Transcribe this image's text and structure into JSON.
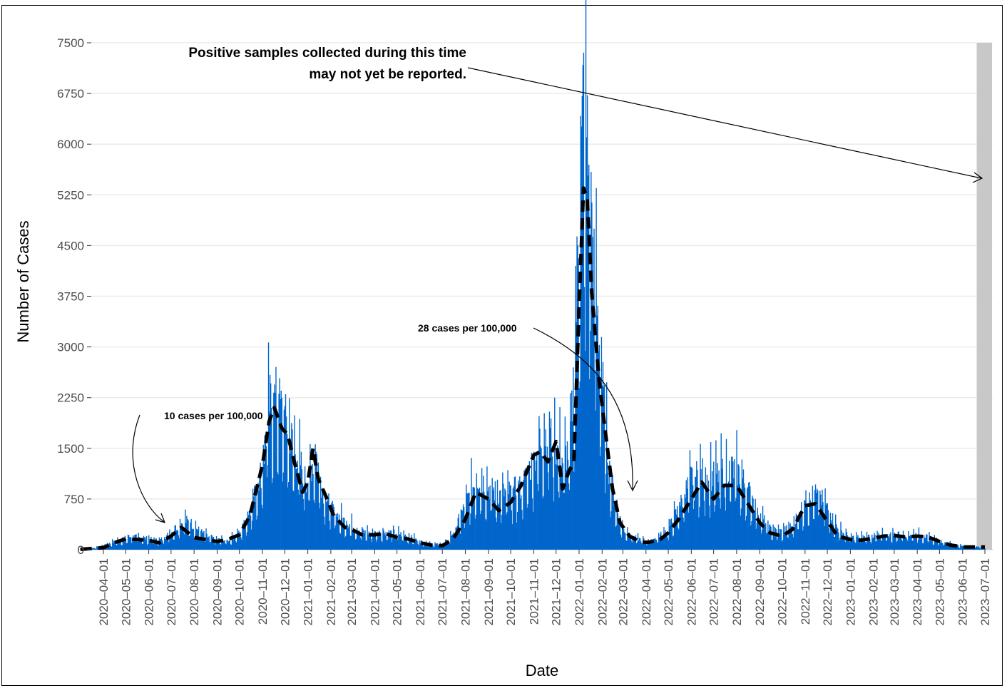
{
  "chart_data": {
    "type": "bar",
    "title": "",
    "xlabel": "Date",
    "ylabel": "Number of Cases",
    "ylim": [
      0,
      7500
    ],
    "xlim": [
      "2020-03-01",
      "2023-07-01"
    ],
    "grid": true,
    "y_ticks": [
      "0",
      "750",
      "1500",
      "2250",
      "3000",
      "3750",
      "4500",
      "5250",
      "6000",
      "6750",
      "7500"
    ],
    "x_ticks": [
      "2020-04-01",
      "2020-05-01",
      "2020-06-01",
      "2020-07-01",
      "2020-08-01",
      "2020-09-01",
      "2020-10-01",
      "2020-11-01",
      "2020-12-01",
      "2021-01-01",
      "2021-02-01",
      "2021-03-01",
      "2021-04-01",
      "2021-05-01",
      "2021-06-01",
      "2021-07-01",
      "2021-08-01",
      "2021-09-01",
      "2021-10-01",
      "2021-11-01",
      "2021-12-01",
      "2022-01-01",
      "2022-02-01",
      "2022-03-01",
      "2022-04-01",
      "2022-05-01",
      "2022-06-01",
      "2022-07-01",
      "2022-08-01",
      "2022-09-01",
      "2022-10-01",
      "2022-11-01",
      "2022-12-01",
      "2023-01-01",
      "2023-02-01",
      "2023-03-01",
      "2023-04-01",
      "2023-05-01",
      "2023-06-01",
      "2023-07-01"
    ],
    "series": [
      {
        "type": "bar",
        "color": "#0066CC",
        "points": [
          [
            "2020-03-01",
            10
          ],
          [
            "2020-03-20",
            25
          ],
          [
            "2020-04-01",
            60
          ],
          [
            "2020-04-15",
            110
          ],
          [
            "2020-05-01",
            170
          ],
          [
            "2020-05-10",
            200
          ],
          [
            "2020-05-20",
            170
          ],
          [
            "2020-06-01",
            160
          ],
          [
            "2020-06-15",
            130
          ],
          [
            "2020-07-01",
            250
          ],
          [
            "2020-07-10",
            350
          ],
          [
            "2020-07-20",
            420
          ],
          [
            "2020-07-28",
            380
          ],
          [
            "2020-08-05",
            300
          ],
          [
            "2020-08-20",
            180
          ],
          [
            "2020-09-01",
            150
          ],
          [
            "2020-09-15",
            130
          ],
          [
            "2020-10-01",
            240
          ],
          [
            "2020-10-10",
            430
          ],
          [
            "2020-10-20",
            750
          ],
          [
            "2020-11-01",
            1200
          ],
          [
            "2020-11-10",
            2100
          ],
          [
            "2020-11-20",
            2200
          ],
          [
            "2020-12-01",
            1900
          ],
          [
            "2020-12-10",
            1600
          ],
          [
            "2020-12-20",
            1300
          ],
          [
            "2020-12-31",
            1000
          ],
          [
            "2021-01-05",
            1200
          ],
          [
            "2021-01-12",
            1400
          ],
          [
            "2021-01-20",
            900
          ],
          [
            "2021-02-01",
            600
          ],
          [
            "2021-02-15",
            450
          ],
          [
            "2021-03-01",
            350
          ],
          [
            "2021-03-15",
            260
          ],
          [
            "2021-04-01",
            240
          ],
          [
            "2021-04-15",
            260
          ],
          [
            "2021-05-01",
            240
          ],
          [
            "2021-05-15",
            200
          ],
          [
            "2021-06-01",
            120
          ],
          [
            "2021-06-15",
            90
          ],
          [
            "2021-07-01",
            70
          ],
          [
            "2021-07-10",
            150
          ],
          [
            "2021-07-20",
            350
          ],
          [
            "2021-08-01",
            650
          ],
          [
            "2021-08-10",
            900
          ],
          [
            "2021-08-20",
            1050
          ],
          [
            "2021-09-01",
            900
          ],
          [
            "2021-09-15",
            800
          ],
          [
            "2021-10-01",
            850
          ],
          [
            "2021-10-15",
            900
          ],
          [
            "2021-11-01",
            1300
          ],
          [
            "2021-11-10",
            1600
          ],
          [
            "2021-11-20",
            1700
          ],
          [
            "2021-12-01",
            1500
          ],
          [
            "2021-12-10",
            1300
          ],
          [
            "2021-12-20",
            1500
          ],
          [
            "2021-12-26",
            2800
          ],
          [
            "2022-01-01",
            5000
          ],
          [
            "2022-01-07",
            6500
          ],
          [
            "2022-01-12",
            5800
          ],
          [
            "2022-01-18",
            4600
          ],
          [
            "2022-01-25",
            3500
          ],
          [
            "2022-02-01",
            2400
          ],
          [
            "2022-02-10",
            1200
          ],
          [
            "2022-02-20",
            600
          ],
          [
            "2022-03-01",
            300
          ],
          [
            "2022-03-15",
            180
          ],
          [
            "2022-04-01",
            130
          ],
          [
            "2022-04-15",
            170
          ],
          [
            "2022-05-01",
            300
          ],
          [
            "2022-05-15",
            600
          ],
          [
            "2022-06-01",
            1050
          ],
          [
            "2022-06-15",
            1100
          ],
          [
            "2022-07-01",
            1050
          ],
          [
            "2022-07-15",
            1150
          ],
          [
            "2022-08-01",
            1150
          ],
          [
            "2022-08-15",
            900
          ],
          [
            "2022-09-01",
            500
          ],
          [
            "2022-09-15",
            300
          ],
          [
            "2022-10-01",
            260
          ],
          [
            "2022-10-15",
            350
          ],
          [
            "2022-11-01",
            700
          ],
          [
            "2022-11-10",
            800
          ],
          [
            "2022-11-20",
            780
          ],
          [
            "2022-12-01",
            600
          ],
          [
            "2022-12-15",
            300
          ],
          [
            "2023-01-01",
            180
          ],
          [
            "2023-01-15",
            180
          ],
          [
            "2023-02-01",
            200
          ],
          [
            "2023-02-15",
            210
          ],
          [
            "2023-03-01",
            220
          ],
          [
            "2023-03-15",
            230
          ],
          [
            "2023-04-01",
            220
          ],
          [
            "2023-04-15",
            180
          ],
          [
            "2023-05-01",
            130
          ],
          [
            "2023-05-15",
            90
          ],
          [
            "2023-06-01",
            50
          ],
          [
            "2023-06-20",
            40
          ],
          [
            "2023-07-01",
            40
          ]
        ]
      },
      {
        "type": "line",
        "style": "dashed",
        "color": "#000000",
        "points": [
          [
            "2020-03-01",
            5
          ],
          [
            "2020-04-01",
            30
          ],
          [
            "2020-04-15",
            100
          ],
          [
            "2020-05-01",
            160
          ],
          [
            "2020-06-01",
            140
          ],
          [
            "2020-06-15",
            100
          ],
          [
            "2020-07-01",
            200
          ],
          [
            "2020-07-15",
            330
          ],
          [
            "2020-08-01",
            180
          ],
          [
            "2020-09-01",
            120
          ],
          [
            "2020-09-15",
            150
          ],
          [
            "2020-10-01",
            220
          ],
          [
            "2020-10-15",
            500
          ],
          [
            "2020-11-01",
            1250
          ],
          [
            "2020-11-10",
            1900
          ],
          [
            "2020-11-17",
            2100
          ],
          [
            "2020-11-27",
            1800
          ],
          [
            "2020-12-05",
            1700
          ],
          [
            "2020-12-15",
            1250
          ],
          [
            "2020-12-25",
            850
          ],
          [
            "2021-01-01",
            1000
          ],
          [
            "2021-01-08",
            1500
          ],
          [
            "2021-01-15",
            1050
          ],
          [
            "2021-01-25",
            800
          ],
          [
            "2021-02-05",
            500
          ],
          [
            "2021-02-20",
            330
          ],
          [
            "2021-03-01",
            300
          ],
          [
            "2021-03-15",
            220
          ],
          [
            "2021-04-01",
            220
          ],
          [
            "2021-04-15",
            240
          ],
          [
            "2021-05-01",
            180
          ],
          [
            "2021-05-15",
            160
          ],
          [
            "2021-06-01",
            100
          ],
          [
            "2021-06-20",
            60
          ],
          [
            "2021-07-01",
            60
          ],
          [
            "2021-07-15",
            150
          ],
          [
            "2021-08-01",
            450
          ],
          [
            "2021-08-15",
            850
          ],
          [
            "2021-09-01",
            750
          ],
          [
            "2021-09-15",
            580
          ],
          [
            "2021-10-01",
            700
          ],
          [
            "2021-10-15",
            950
          ],
          [
            "2021-11-01",
            1400
          ],
          [
            "2021-11-10",
            1450
          ],
          [
            "2021-11-20",
            1300
          ],
          [
            "2021-12-01",
            1600
          ],
          [
            "2021-12-10",
            900
          ],
          [
            "2021-12-18",
            1150
          ],
          [
            "2021-12-25",
            1300
          ],
          [
            "2022-01-01",
            3600
          ],
          [
            "2022-01-07",
            5350
          ],
          [
            "2022-01-12",
            5200
          ],
          [
            "2022-01-18",
            3800
          ],
          [
            "2022-01-28",
            2500
          ],
          [
            "2022-02-07",
            1600
          ],
          [
            "2022-02-15",
            900
          ],
          [
            "2022-02-25",
            400
          ],
          [
            "2022-03-10",
            200
          ],
          [
            "2022-03-25",
            110
          ],
          [
            "2022-04-05",
            110
          ],
          [
            "2022-04-20",
            150
          ],
          [
            "2022-05-01",
            250
          ],
          [
            "2022-05-15",
            450
          ],
          [
            "2022-06-01",
            750
          ],
          [
            "2022-06-15",
            1000
          ],
          [
            "2022-07-01",
            750
          ],
          [
            "2022-07-15",
            950
          ],
          [
            "2022-08-01",
            950
          ],
          [
            "2022-08-15",
            700
          ],
          [
            "2022-09-01",
            400
          ],
          [
            "2022-09-15",
            250
          ],
          [
            "2022-10-01",
            200
          ],
          [
            "2022-10-15",
            300
          ],
          [
            "2022-11-01",
            650
          ],
          [
            "2022-11-15",
            680
          ],
          [
            "2022-12-01",
            420
          ],
          [
            "2022-12-15",
            200
          ],
          [
            "2023-01-01",
            150
          ],
          [
            "2023-01-15",
            140
          ],
          [
            "2023-02-01",
            170
          ],
          [
            "2023-02-15",
            200
          ],
          [
            "2023-03-01",
            210
          ],
          [
            "2023-03-15",
            190
          ],
          [
            "2023-04-01",
            200
          ],
          [
            "2023-04-15",
            190
          ],
          [
            "2023-05-01",
            120
          ],
          [
            "2023-05-15",
            70
          ],
          [
            "2023-06-01",
            40
          ],
          [
            "2023-07-01",
            40
          ]
        ]
      }
    ],
    "annotations": [
      {
        "text": "Positive samples collected during this time",
        "anchor": "2023-03-15",
        "value": 7300
      },
      {
        "text": "may not yet be reported.",
        "anchor": "2023-03-15",
        "value": 7050
      },
      {
        "text": "10 cases per 100,000",
        "anchor": "2020-08-01",
        "value": 1980
      },
      {
        "text": "28 cases per 100,000",
        "anchor": "2021-11-01",
        "value": 3270
      }
    ],
    "shaded_region": {
      "from": "2023-06-20",
      "to": "2023-07-01",
      "color": "#C8C8C8"
    }
  }
}
